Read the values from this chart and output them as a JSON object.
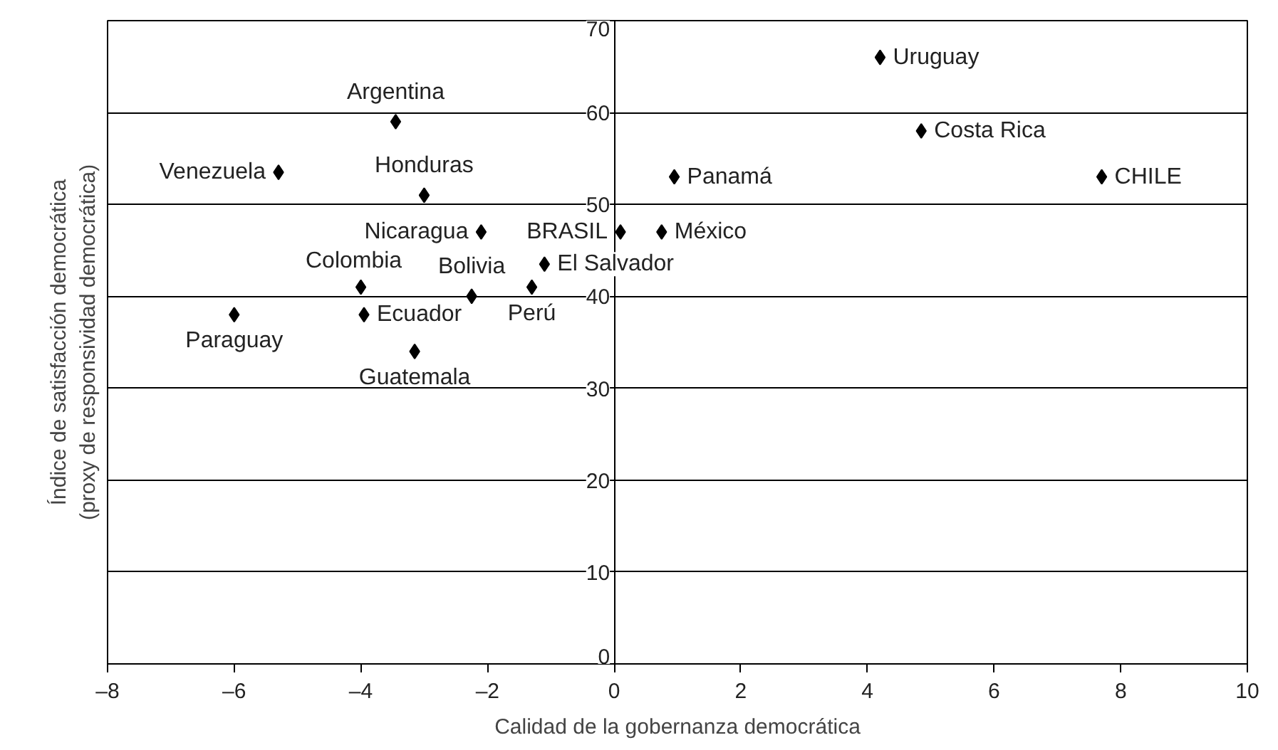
{
  "chart_data": {
    "type": "scatter",
    "xlabel": "Calidad de la gobernanza democrática",
    "ylabel": "Índice de satisfacción democrática\n(proxy de responsividad democrática)",
    "x": [
      -3.45,
      -5.3,
      -3.0,
      -2.1,
      0.1,
      0.75,
      -1.1,
      -4.0,
      -1.3,
      -2.25,
      -6.0,
      -3.95,
      -3.15,
      0.95,
      4.2,
      4.85,
      7.7
    ],
    "series": [
      {
        "color": "#000000",
        "values": [
          59,
          53.5,
          51,
          47,
          47,
          47,
          43.5,
          41,
          41,
          40,
          38,
          38,
          34,
          53,
          66,
          58,
          53
        ]
      }
    ],
    "annotations": [
      {
        "text": "Argentina",
        "x": -3.45,
        "y": 59
      },
      {
        "text": "Venezuela",
        "x": -5.3,
        "y": 53.5
      },
      {
        "text": "Honduras",
        "x": -3.0,
        "y": 51
      },
      {
        "text": "Nicaragua",
        "x": -2.1,
        "y": 47
      },
      {
        "text": "BRASIL",
        "x": 0.1,
        "y": 47
      },
      {
        "text": "México",
        "x": 0.75,
        "y": 47
      },
      {
        "text": "El Salvador",
        "x": -1.1,
        "y": 43.5
      },
      {
        "text": "Colombia",
        "x": -4.0,
        "y": 41
      },
      {
        "text": "Perú",
        "x": -1.3,
        "y": 41
      },
      {
        "text": "Bolivia",
        "x": -2.25,
        "y": 40
      },
      {
        "text": "Paraguay",
        "x": -6.0,
        "y": 38
      },
      {
        "text": "Ecuador",
        "x": -3.95,
        "y": 38
      },
      {
        "text": "Guatemala",
        "x": -3.15,
        "y": 34
      },
      {
        "text": "Panamá",
        "x": 0.95,
        "y": 53
      },
      {
        "text": "Uruguay",
        "x": 4.2,
        "y": 66
      },
      {
        "text": "Costa Rica",
        "x": 4.85,
        "y": 58
      },
      {
        "text": "CHILE",
        "x": 7.7,
        "y": 53
      }
    ],
    "xlim": [
      -8,
      10
    ],
    "xticks": [
      {
        "value": -8,
        "label": "–8"
      },
      {
        "value": -6,
        "label": "–6"
      },
      {
        "value": -4,
        "label": "–4"
      },
      {
        "value": -2,
        "label": "–2"
      },
      0,
      2,
      4,
      6,
      8,
      10
    ],
    "ylim": [
      0,
      70
    ],
    "yticks": [
      0,
      10,
      20,
      30,
      40,
      50,
      60,
      70
    ],
    "grid": "y",
    "marker": "diamond"
  }
}
